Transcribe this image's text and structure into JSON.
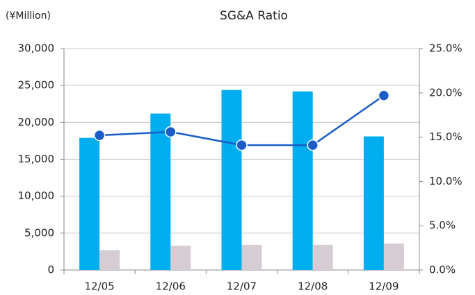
{
  "chart_data": {
    "type": "bar",
    "title": "SG&A Ratio",
    "y_axis_label": "(¥Million)",
    "categories": [
      "12/05",
      "12/06",
      "12/07",
      "12/08",
      "12/09"
    ],
    "series": [
      {
        "type": "bar",
        "color": "#00aeef",
        "values": [
          17900,
          21200,
          24400,
          24200,
          18100
        ]
      },
      {
        "type": "bar",
        "color": "#d6cdd4",
        "values": [
          2700,
          3300,
          3400,
          3400,
          3600
        ]
      },
      {
        "type": "line",
        "axis": "y2",
        "color": "#1a5cc8",
        "values": [
          15.2,
          15.6,
          14.1,
          14.1,
          19.7
        ]
      }
    ],
    "ylim": [
      0,
      30000
    ],
    "yticks": [
      0,
      {
        "value": 5000,
        "label": "5,000"
      },
      {
        "value": 10000,
        "label": "10,000"
      },
      {
        "value": 15000,
        "label": "15,000"
      },
      {
        "value": 20000,
        "label": "20,000"
      },
      {
        "value": 25000,
        "label": "25,000"
      },
      {
        "value": 30000,
        "label": "30,000"
      }
    ],
    "y2lim": [
      0,
      25
    ],
    "y2ticks": [
      {
        "value": 0,
        "label": "0.0%"
      },
      {
        "value": 5,
        "label": "5.0%"
      },
      {
        "value": 10,
        "label": "10.0%"
      },
      {
        "value": 15,
        "label": "15.0%"
      },
      {
        "value": 20,
        "label": "20.0%"
      },
      {
        "value": 25,
        "label": "25.0%"
      }
    ],
    "grid": true
  }
}
